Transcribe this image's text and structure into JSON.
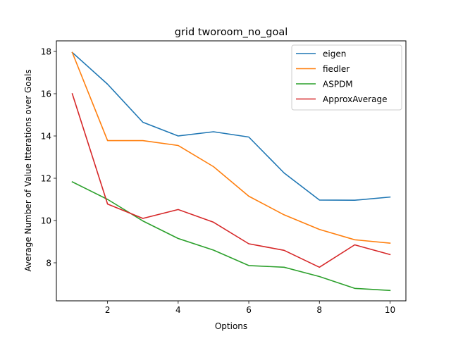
{
  "chart_data": {
    "type": "line",
    "title": "grid  tworoom_no_goal",
    "xlabel": "Options",
    "ylabel": "Average Number of Value Itterations over Goals",
    "xlim": [
      0.55,
      10.45
    ],
    "ylim": [
      6.2,
      18.5
    ],
    "xticks": [
      2,
      4,
      6,
      8,
      10
    ],
    "yticks": [
      8,
      10,
      12,
      14,
      16,
      18
    ],
    "grid": false,
    "legend_position": "top-right",
    "x": [
      1,
      2,
      3,
      4,
      5,
      6,
      7,
      8,
      9,
      10
    ],
    "series": [
      {
        "name": "eigen",
        "color": "#1f77b4",
        "values": [
          17.95,
          16.45,
          14.65,
          14.0,
          14.2,
          13.95,
          12.25,
          10.97,
          10.96,
          11.11
        ]
      },
      {
        "name": "fiedler",
        "color": "#ff7f0e",
        "values": [
          17.95,
          13.78,
          13.78,
          13.55,
          12.55,
          11.15,
          10.27,
          9.58,
          9.09,
          8.93
        ]
      },
      {
        "name": "ASPDM",
        "color": "#2ca02c",
        "values": [
          11.83,
          11.0,
          9.98,
          9.15,
          8.6,
          7.87,
          7.79,
          7.35,
          6.79,
          6.69
        ]
      },
      {
        "name": "ApproxAverage",
        "color": "#d62728",
        "values": [
          16.0,
          10.78,
          10.1,
          10.52,
          9.92,
          8.9,
          8.59,
          7.79,
          8.85,
          8.39
        ]
      }
    ]
  }
}
